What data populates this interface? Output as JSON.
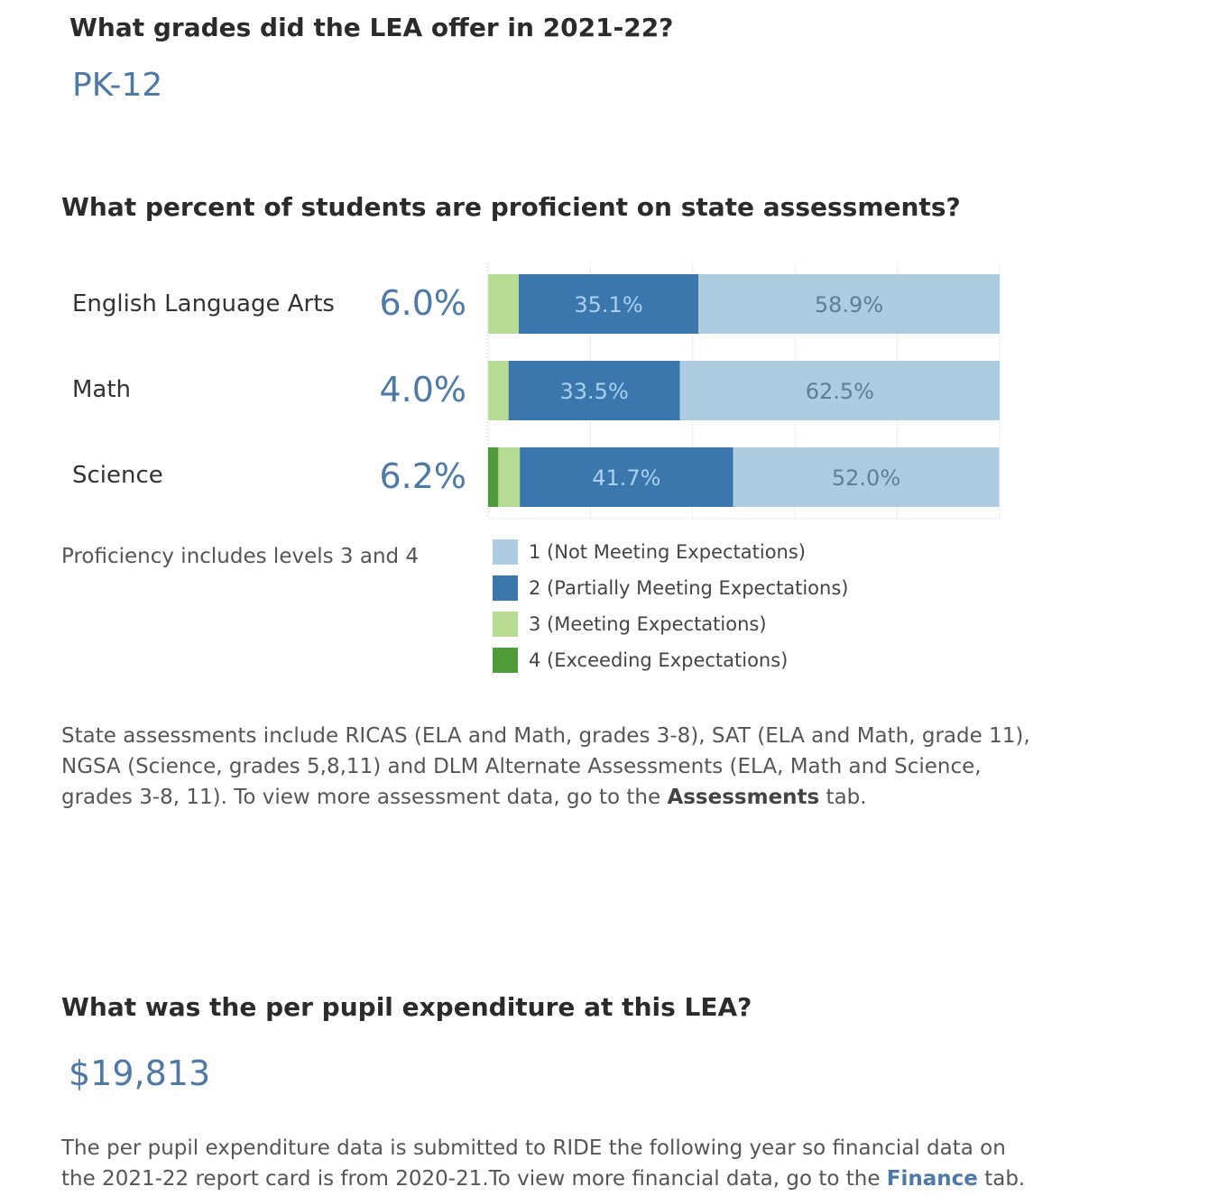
{
  "grades": {
    "question": "What grades did the LEA offer in 2021-22?",
    "value": "PK-12"
  },
  "proficiency": {
    "question": "What percent of students are proficient on state assessments?",
    "note": "Proficiency includes levels 3 and 4",
    "subjects": [
      {
        "name": "English Language Arts",
        "proficient": "6.0%"
      },
      {
        "name": "Math",
        "proficient": "4.0%"
      },
      {
        "name": "Science",
        "proficient": "6.2%"
      }
    ]
  },
  "chart_data": {
    "type": "bar",
    "orientation": "horizontal",
    "stacked": true,
    "categories": [
      "English Language Arts",
      "Math",
      "Science"
    ],
    "series": [
      {
        "name": "4 (Exceeding Expectations)",
        "values": [
          0.0,
          0.0,
          2.0
        ],
        "color": "#4f9a3a",
        "labels": [
          "",
          "",
          ""
        ]
      },
      {
        "name": "3 (Meeting Expectations)",
        "values": [
          6.0,
          4.0,
          4.2
        ],
        "color": "#b6dc93",
        "labels": [
          "",
          "",
          ""
        ]
      },
      {
        "name": "2 (Partially Meeting Expectations)",
        "values": [
          35.1,
          33.5,
          41.7
        ],
        "color": "#3b76ad",
        "labels": [
          "35.1%",
          "33.5%",
          "41.7%"
        ],
        "label_color": "#a9d1f0"
      },
      {
        "name": "1 (Not Meeting Expectations)",
        "values": [
          58.9,
          62.5,
          52.0
        ],
        "color": "#adcce0",
        "labels": [
          "58.9%",
          "62.5%",
          "52.0%"
        ],
        "label_color": "#5e7e96"
      }
    ],
    "xlim": [
      0,
      100
    ],
    "grid": true,
    "legend": [
      {
        "label": "1 (Not Meeting Expectations)",
        "color": "#adcce0"
      },
      {
        "label": "2 (Partially Meeting Expectations)",
        "color": "#3b76ad"
      },
      {
        "label": "3 (Meeting Expectations)",
        "color": "#b6dc93"
      },
      {
        "label": "4 (Exceeding Expectations)",
        "color": "#4f9a3a"
      }
    ]
  },
  "assessments_text": {
    "line1": "State assessments include RICAS (ELA and Math, grades 3-8), SAT (ELA and Math, grade 11),",
    "line2": "NGSA (Science, grades 5,8,11) and DLM Alternate Assessments (ELA, Math and Science,",
    "line3_pre": "grades 3-8, 11). To view more assessment data, go to the ",
    "link": "Assessments",
    "line3_post": " tab."
  },
  "expenditure": {
    "question": "What was the per pupil expenditure at this LEA?",
    "value": "$19,813",
    "line1": "The per pupil expenditure data is submitted to RIDE the following year so financial data on",
    "line2_pre": "the 2021-22 report card is from 2020-21.To view more financial data, go to the ",
    "link": "Finance",
    "line2_post": " tab."
  }
}
